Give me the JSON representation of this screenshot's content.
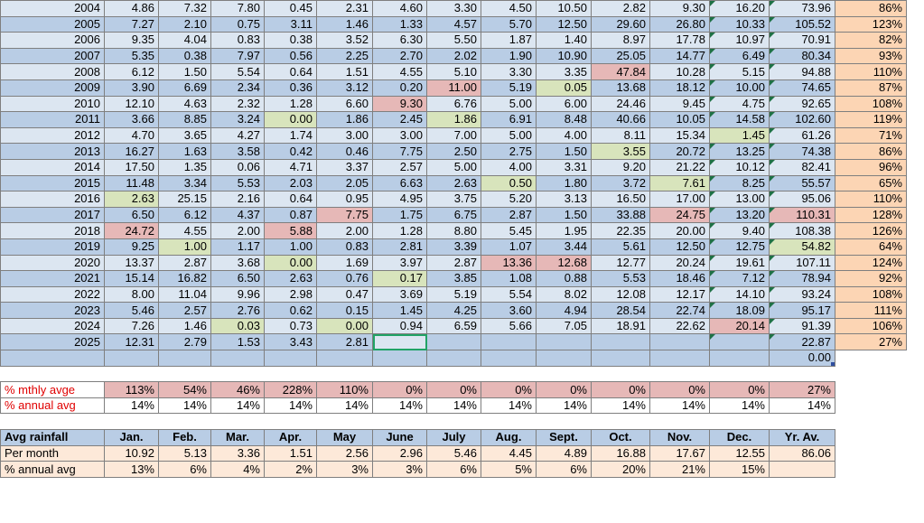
{
  "years": [
    {
      "year": "2004",
      "m": [
        "4.86",
        "7.32",
        "7.80",
        "0.45",
        "2.31",
        "4.60",
        "3.30",
        "4.50",
        "10.50",
        "2.82",
        "9.30",
        "16.20"
      ],
      "total": "73.96",
      "pct": "86%"
    },
    {
      "year": "2005",
      "m": [
        "7.27",
        "2.10",
        "0.75",
        "3.11",
        "1.46",
        "1.33",
        "4.57",
        "5.70",
        "12.50",
        "29.60",
        "26.80",
        "10.33"
      ],
      "total": "105.52",
      "pct": "123%"
    },
    {
      "year": "2006",
      "m": [
        "9.35",
        "4.04",
        "0.83",
        "0.38",
        "3.52",
        "6.30",
        "5.50",
        "1.87",
        "1.40",
        "8.97",
        "17.78",
        "10.97"
      ],
      "total": "70.91",
      "pct": "82%"
    },
    {
      "year": "2007",
      "m": [
        "5.35",
        "0.38",
        "7.97",
        "0.56",
        "2.25",
        "2.70",
        "2.02",
        "1.90",
        "10.90",
        "25.05",
        "14.77",
        "6.49"
      ],
      "total": "80.34",
      "pct": "93%"
    },
    {
      "year": "2008",
      "m": [
        "6.12",
        "1.50",
        "5.54",
        "0.64",
        "1.51",
        "4.55",
        "5.10",
        "3.30",
        "3.35",
        "47.84",
        "10.28",
        "5.15"
      ],
      "total": "94.88",
      "pct": "110%"
    },
    {
      "year": "2009",
      "m": [
        "3.90",
        "6.69",
        "2.34",
        "0.36",
        "3.12",
        "0.20",
        "11.00",
        "5.19",
        "0.05",
        "13.68",
        "18.12",
        "10.00"
      ],
      "total": "74.65",
      "pct": "87%"
    },
    {
      "year": "2010",
      "m": [
        "12.10",
        "4.63",
        "2.32",
        "1.28",
        "6.60",
        "9.30",
        "6.76",
        "5.00",
        "6.00",
        "24.46",
        "9.45",
        "4.75"
      ],
      "total": "92.65",
      "pct": "108%"
    },
    {
      "year": "2011",
      "m": [
        "3.66",
        "8.85",
        "3.24",
        "0.00",
        "1.86",
        "2.45",
        "1.86",
        "6.91",
        "8.48",
        "40.66",
        "10.05",
        "14.58"
      ],
      "total": "102.60",
      "pct": "119%"
    },
    {
      "year": "2012",
      "m": [
        "4.70",
        "3.65",
        "4.27",
        "1.74",
        "3.00",
        "3.00",
        "7.00",
        "5.00",
        "4.00",
        "8.11",
        "15.34",
        "1.45"
      ],
      "total": "61.26",
      "pct": "71%"
    },
    {
      "year": "2013",
      "m": [
        "16.27",
        "1.63",
        "3.58",
        "0.42",
        "0.46",
        "7.75",
        "2.50",
        "2.75",
        "1.50",
        "3.55",
        "20.72",
        "13.25"
      ],
      "total": "74.38",
      "pct": "86%"
    },
    {
      "year": "2014",
      "m": [
        "17.50",
        "1.35",
        "0.06",
        "4.71",
        "3.37",
        "2.57",
        "5.00",
        "4.00",
        "3.31",
        "9.20",
        "21.22",
        "10.12"
      ],
      "total": "82.41",
      "pct": "96%"
    },
    {
      "year": "2015",
      "m": [
        "11.48",
        "3.34",
        "5.53",
        "2.03",
        "2.05",
        "6.63",
        "2.63",
        "0.50",
        "1.80",
        "3.72",
        "7.61",
        "8.25"
      ],
      "total": "55.57",
      "pct": "65%"
    },
    {
      "year": "2016",
      "m": [
        "2.63",
        "25.15",
        "2.16",
        "0.64",
        "0.95",
        "4.95",
        "3.75",
        "5.20",
        "3.13",
        "16.50",
        "17.00",
        "13.00"
      ],
      "total": "95.06",
      "pct": "110%"
    },
    {
      "year": "2017",
      "m": [
        "6.50",
        "6.12",
        "4.37",
        "0.87",
        "7.75",
        "1.75",
        "6.75",
        "2.87",
        "1.50",
        "33.88",
        "24.75",
        "13.20"
      ],
      "total": "110.31",
      "pct": "128%"
    },
    {
      "year": "2018",
      "m": [
        "24.72",
        "4.55",
        "2.00",
        "5.88",
        "2.00",
        "1.28",
        "8.80",
        "5.45",
        "1.95",
        "22.35",
        "20.00",
        "9.40"
      ],
      "total": "108.38",
      "pct": "126%"
    },
    {
      "year": "2019",
      "m": [
        "9.25",
        "1.00",
        "1.17",
        "1.00",
        "0.83",
        "2.81",
        "3.39",
        "1.07",
        "3.44",
        "5.61",
        "12.50",
        "12.75"
      ],
      "total": "54.82",
      "pct": "64%"
    },
    {
      "year": "2020",
      "m": [
        "13.37",
        "2.87",
        "3.68",
        "0.00",
        "1.69",
        "3.97",
        "2.87",
        "13.36",
        "12.68",
        "12.77",
        "20.24",
        "19.61"
      ],
      "total": "107.11",
      "pct": "124%"
    },
    {
      "year": "2021",
      "m": [
        "15.14",
        "16.82",
        "6.50",
        "2.63",
        "0.76",
        "0.17",
        "3.85",
        "1.08",
        "0.88",
        "5.53",
        "18.46",
        "7.12"
      ],
      "total": "78.94",
      "pct": "92%"
    },
    {
      "year": "2022",
      "m": [
        "8.00",
        "11.04",
        "9.96",
        "2.98",
        "0.47",
        "3.69",
        "5.19",
        "5.54",
        "8.02",
        "12.08",
        "12.17",
        "14.10"
      ],
      "total": "93.24",
      "pct": "108%"
    },
    {
      "year": "2023",
      "m": [
        "5.46",
        "2.57",
        "2.76",
        "0.62",
        "0.15",
        "1.45",
        "4.25",
        "3.60",
        "4.94",
        "28.54",
        "22.74",
        "18.09"
      ],
      "total": "95.17",
      "pct": "111%"
    },
    {
      "year": "2024",
      "m": [
        "7.26",
        "1.46",
        "0.03",
        "0.73",
        "0.00",
        "0.94",
        "6.59",
        "5.66",
        "7.05",
        "18.91",
        "22.62",
        "20.14"
      ],
      "total": "91.39",
      "pct": "106%"
    },
    {
      "year": "2025",
      "m": [
        "12.31",
        "2.79",
        "1.53",
        "3.43",
        "2.81",
        "",
        "",
        "",
        "",
        "",
        "",
        ""
      ],
      "total": "22.87",
      "pct": "27%"
    }
  ],
  "extra_total": "0.00",
  "mthly": {
    "label": "% mthly avge",
    "vals": [
      "113%",
      "54%",
      "46%",
      "228%",
      "110%",
      "0%",
      "0%",
      "0%",
      "0%",
      "0%",
      "0%",
      "0%",
      "27%"
    ]
  },
  "annual": {
    "label": "% annual avg",
    "vals": [
      "14%",
      "14%",
      "14%",
      "14%",
      "14%",
      "14%",
      "14%",
      "14%",
      "14%",
      "14%",
      "14%",
      "14%",
      "14%"
    ]
  },
  "header": {
    "label": "Avg rainfall",
    "months": [
      "Jan.",
      "Feb.",
      "Mar.",
      "Apr.",
      "May",
      "June",
      "July",
      "Aug.",
      "Sept.",
      "Oct.",
      "Nov.",
      "Dec.",
      "Yr. Av."
    ]
  },
  "permonth": {
    "label": "Per month",
    "vals": [
      "10.92",
      "5.13",
      "3.36",
      "1.51",
      "2.56",
      "2.96",
      "5.46",
      "4.45",
      "4.89",
      "16.88",
      "17.67",
      "12.55",
      "86.06"
    ]
  },
  "pctannual": {
    "label": "% annual avg",
    "vals": [
      "13%",
      "6%",
      "4%",
      "2%",
      "3%",
      "3%",
      "6%",
      "5%",
      "6%",
      "20%",
      "21%",
      "15%",
      ""
    ]
  },
  "highlights": {
    "red": [
      [
        "2008",
        9
      ],
      [
        "2009",
        6
      ],
      [
        "2010",
        5
      ],
      [
        "2017",
        4
      ],
      [
        "2017",
        10
      ],
      [
        "2017",
        12
      ],
      [
        "2018",
        0
      ],
      [
        "2018",
        3
      ],
      [
        "2020",
        7
      ],
      [
        "2020",
        8
      ],
      [
        "2024",
        11
      ]
    ],
    "green": [
      [
        "2009",
        8
      ],
      [
        "2011",
        3
      ],
      [
        "2011",
        6
      ],
      [
        "2012",
        11
      ],
      [
        "2013",
        9
      ],
      [
        "2015",
        7
      ],
      [
        "2015",
        10
      ],
      [
        "2016",
        0
      ],
      [
        "2019",
        1
      ],
      [
        "2019",
        12
      ],
      [
        "2020",
        3
      ],
      [
        "2021",
        5
      ],
      [
        "2024",
        2
      ],
      [
        "2024",
        4
      ]
    ],
    "triangle": [
      "2004",
      "2005",
      "2006",
      "2007",
      "2008",
      "2009",
      "2010",
      "2011",
      "2012",
      "2013",
      "2014",
      "2015",
      "2016",
      "2017",
      "2018",
      "2019",
      "2020",
      "2021",
      "2022",
      "2023",
      "2024",
      "2025"
    ]
  }
}
